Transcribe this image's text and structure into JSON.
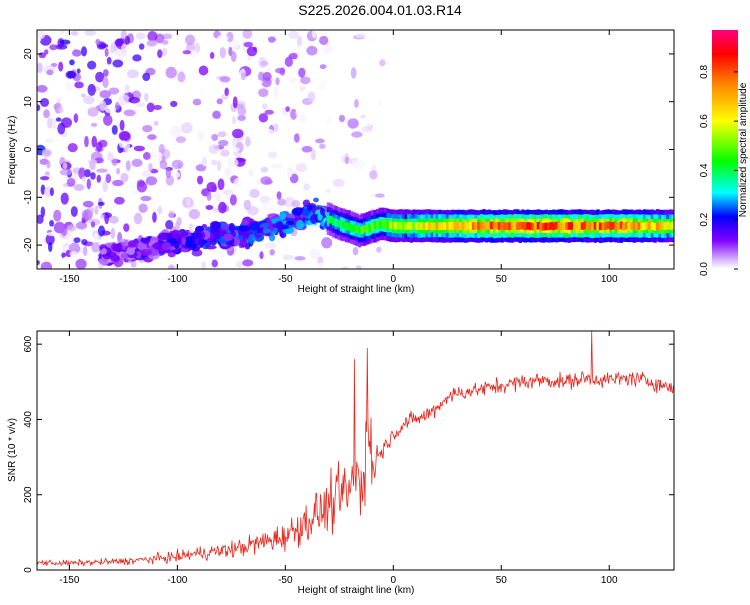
{
  "title": "S225.2026.004.01.03.R14",
  "colors": {
    "line": "#e8281e",
    "frame": "#000000",
    "background": "#ffffff"
  },
  "chart_data": [
    {
      "type": "heatmap",
      "title": "S225.2026.004.01.03.R14",
      "xlabel": "Height of straight line (km)",
      "ylabel": "Frequency (Hz)",
      "xlim": [
        -165,
        130
      ],
      "ylim": [
        -25,
        25
      ],
      "xticks": [
        -150,
        -100,
        -50,
        0,
        50,
        100
      ],
      "yticks": [
        -20,
        -10,
        0,
        10,
        20
      ],
      "xtick_labels": [
        "-150",
        "-100",
        "-50",
        "0",
        "50",
        "100"
      ],
      "ytick_labels": [
        "-20",
        "-10",
        "0",
        "10",
        "20"
      ],
      "colorbar": {
        "label": "Normalized spectral amplitude",
        "range": [
          0,
          0.97
        ],
        "ticks": [
          0.0,
          0.2,
          0.4,
          0.6,
          0.8
        ],
        "tick_labels": [
          "0.0",
          "0.2",
          "0.4",
          "0.6",
          "0.8"
        ],
        "colormap": [
          "#ffffff",
          "#7f00ff",
          "#0000ff",
          "#00ffff",
          "#00ff00",
          "#ffff00",
          "#ff8000",
          "#ff0000",
          "#ff0080"
        ]
      },
      "ridge": {
        "description_x": [
          -130,
          -110,
          -90,
          -70,
          -50,
          -35,
          -25,
          -15,
          -5,
          0,
          20,
          50,
          80,
          110,
          128
        ],
        "freq": [
          -22,
          -20,
          -18.5,
          -17.5,
          -15,
          -13.5,
          -15.5,
          -17,
          -15.5,
          -16,
          -16,
          -16,
          -16,
          -16,
          -16
        ],
        "amplitude": [
          0.15,
          0.2,
          0.25,
          0.3,
          0.3,
          0.35,
          0.4,
          0.45,
          0.5,
          0.55,
          0.65,
          0.8,
          0.8,
          0.75,
          0.65
        ]
      }
    },
    {
      "type": "line",
      "xlabel": "Height of straight line (km)",
      "ylabel": "SNR (10 * v/v)",
      "xlim": [
        -165,
        130
      ],
      "ylim": [
        0,
        635
      ],
      "xticks": [
        -150,
        -100,
        -50,
        0,
        50,
        100
      ],
      "yticks": [
        0,
        200,
        400,
        600
      ],
      "xtick_labels": [
        "-150",
        "-100",
        "-50",
        "0",
        "50",
        "100"
      ],
      "ytick_labels": [
        "0",
        "200",
        "400",
        "600"
      ],
      "series": [
        {
          "color": "#e8281e",
          "x": [
            -165,
            -150,
            -140,
            -130,
            -120,
            -110,
            -100,
            -90,
            -80,
            -70,
            -60,
            -50,
            -45,
            -40,
            -35,
            -30,
            -25,
            -20,
            -15,
            -10,
            -5,
            0,
            5,
            10,
            15,
            20,
            25,
            30,
            40,
            50,
            60,
            70,
            80,
            90,
            100,
            110,
            120,
            130
          ],
          "y": [
            20,
            18,
            20,
            22,
            25,
            30,
            35,
            45,
            50,
            60,
            75,
            90,
            110,
            130,
            150,
            170,
            190,
            220,
            250,
            275,
            320,
            360,
            390,
            400,
            410,
            430,
            460,
            470,
            480,
            490,
            500,
            505,
            500,
            510,
            505,
            510,
            500,
            480
          ]
        }
      ],
      "peaks": [
        {
          "x": -12,
          "y": 590
        },
        {
          "x": -18,
          "y": 560
        },
        {
          "x": 92,
          "y": 635
        }
      ]
    }
  ]
}
